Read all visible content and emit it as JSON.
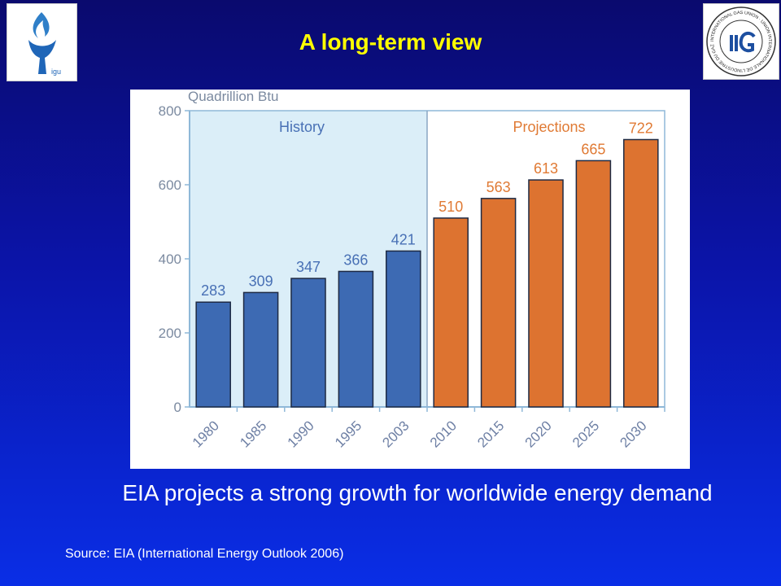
{
  "slide": {
    "title": "A long-term view",
    "caption": "EIA projects a strong growth for worldwide energy demand",
    "source": "Source: EIA (International Energy Outlook 2006)"
  },
  "logos": {
    "left": {
      "icon": "flame-torch-logo-icon",
      "text": "igu"
    },
    "right": {
      "icon": "international-gas-union-seal-icon",
      "text": "INTERNATIONAL GAS UNION · UNION INTERNATIONALE DE L'INDUSTRIE DU GAZ"
    }
  },
  "colors": {
    "history_bar": "#3d6ab3",
    "projection_bar": "#dd7330",
    "history_bg": "#dbeef8",
    "history_label": "#4870b5",
    "projection_label": "#e07a34",
    "title": "#ffff00"
  },
  "chart_data": {
    "type": "bar",
    "title": "",
    "ylabel": "Quadrillion Btu",
    "ylim": [
      0,
      800
    ],
    "yticks": [
      0,
      200,
      400,
      600,
      800
    ],
    "categories": [
      "1980",
      "1985",
      "1990",
      "1995",
      "2003",
      "2010",
      "2015",
      "2020",
      "2025",
      "2030"
    ],
    "values": [
      283,
      309,
      347,
      366,
      421,
      510,
      563,
      613,
      665,
      722
    ],
    "phase": [
      "history",
      "history",
      "history",
      "history",
      "history",
      "projection",
      "projection",
      "projection",
      "projection",
      "projection"
    ],
    "regions": [
      {
        "label": "History"
      },
      {
        "label": "Projections"
      }
    ],
    "grid": false
  }
}
